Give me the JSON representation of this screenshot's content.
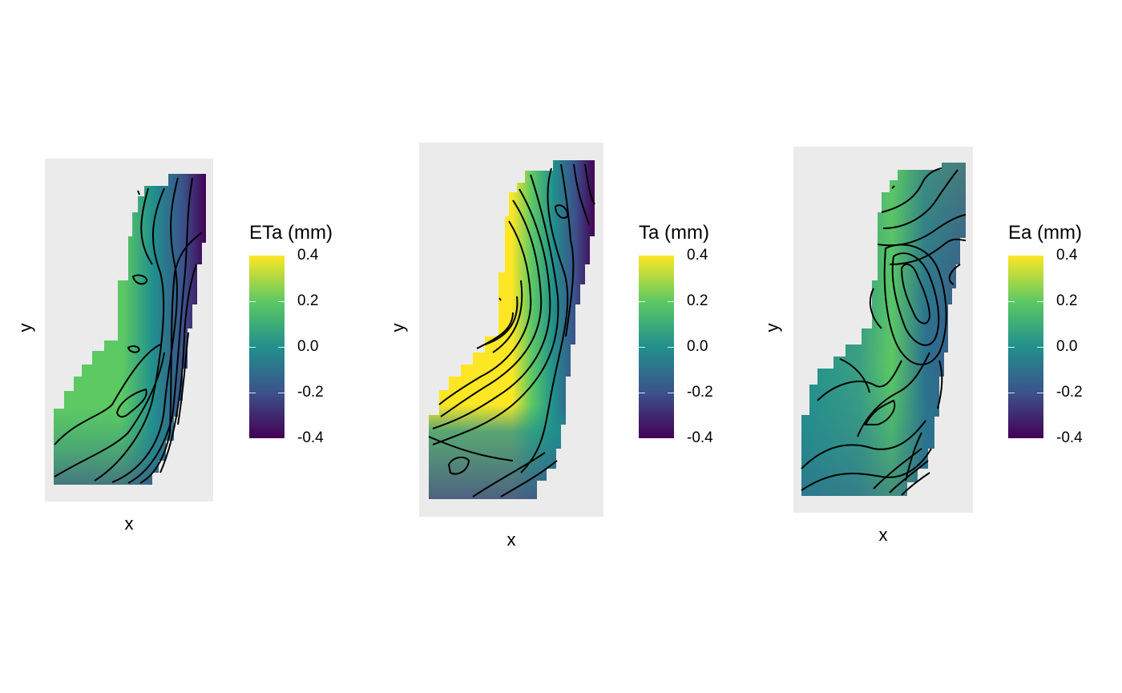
{
  "chart_data": [
    {
      "type": "heatmap",
      "title": "",
      "xlabel": "x",
      "ylabel": "y",
      "fill_label": "ETa (mm)",
      "fill_range": [
        -0.4,
        0.4
      ],
      "legend_ticks": [
        "0.4",
        "0.2",
        "0.0",
        "-0.2",
        "-0.4"
      ],
      "colormap": "viridis",
      "contours": true,
      "legend_position": "right"
    },
    {
      "type": "heatmap",
      "title": "",
      "xlabel": "x",
      "ylabel": "y",
      "fill_label": "Ta (mm)",
      "fill_range": [
        -0.4,
        0.4
      ],
      "legend_ticks": [
        "0.4",
        "0.2",
        "0.0",
        "-0.2",
        "-0.4"
      ],
      "colormap": "viridis",
      "contours": true,
      "legend_position": "right"
    },
    {
      "type": "heatmap",
      "title": "",
      "xlabel": "x",
      "ylabel": "y",
      "fill_label": "Ea (mm)",
      "fill_range": [
        -0.4,
        0.4
      ],
      "legend_ticks": [
        "0.4",
        "0.2",
        "0.0",
        "-0.2",
        "-0.4"
      ],
      "colormap": "viridis",
      "contours": true,
      "legend_position": "right"
    }
  ],
  "colors": {
    "panel_background": "#ebebeb",
    "viridis_low": "#440154",
    "viridis_mid": "#21908d",
    "viridis_high": "#fde725",
    "contour": "#000000"
  }
}
